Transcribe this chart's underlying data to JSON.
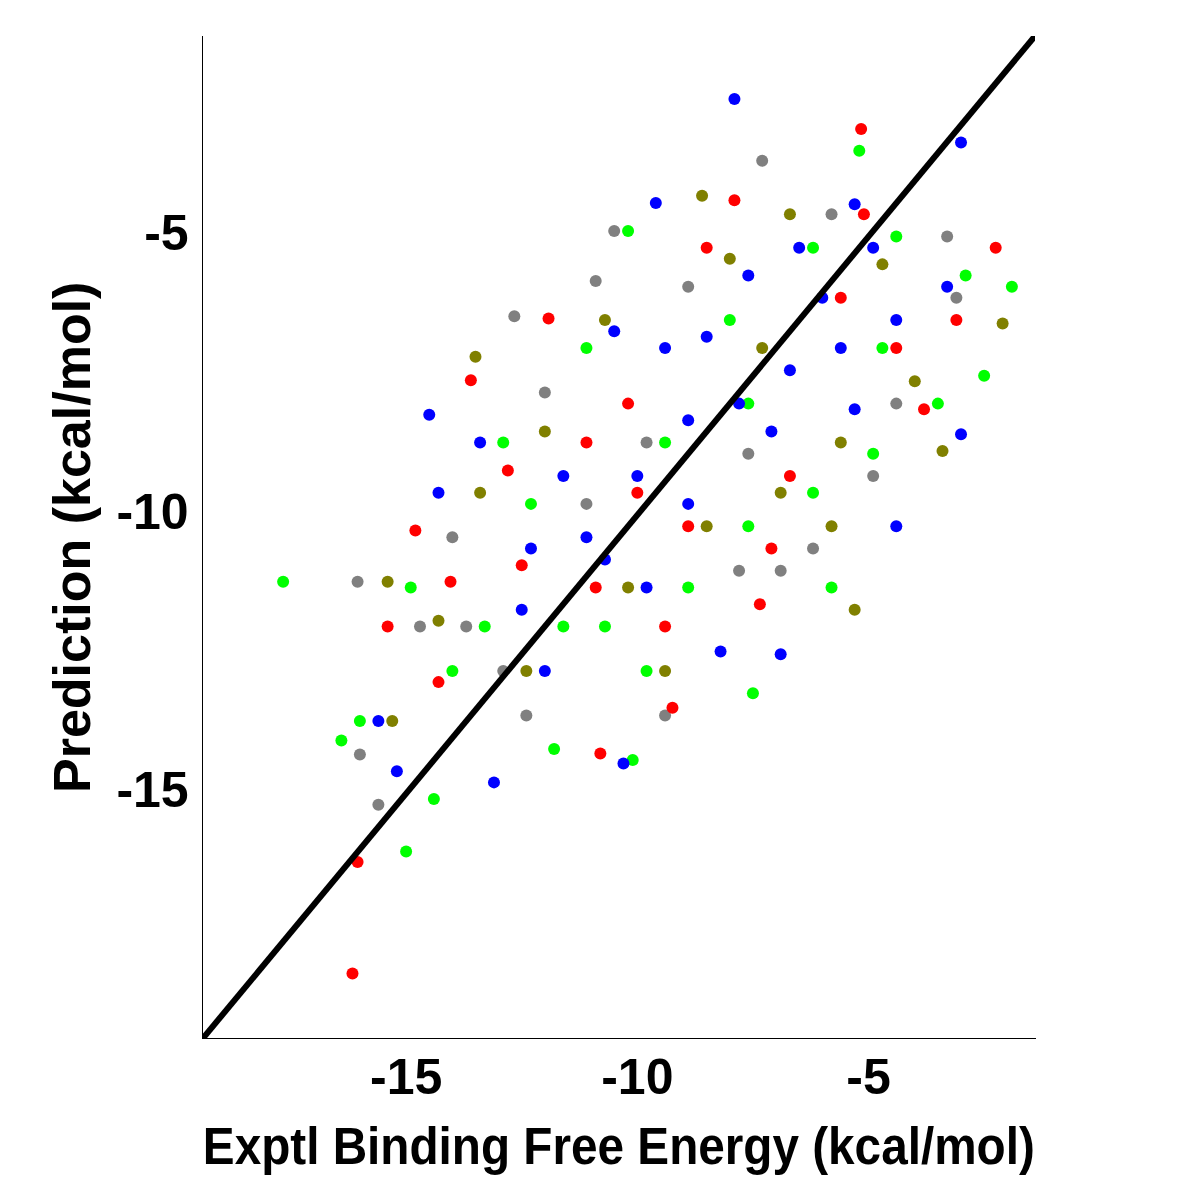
{
  "chart_data": {
    "type": "scatter",
    "xlabel": "Exptl Binding Free Energy (kcal/mol)",
    "ylabel": "Prediction (kcal/mol)",
    "xlim": [
      -19.4,
      -1.4
    ],
    "ylim": [
      -19.4,
      -1.4
    ],
    "xticks": [
      -15,
      -10,
      -5
    ],
    "yticks": [
      -15,
      -10,
      -5
    ],
    "grid": false,
    "legend": false,
    "marker": "circle",
    "series": [
      {
        "color": "#808080",
        "x": [
          -16.05,
          -16.0,
          -15.6,
          -7.3,
          -12.66,
          -10.5,
          -10.9,
          -7.8,
          -6.9,
          -9.4,
          -12.4,
          -13.7,
          -14.0,
          -12.0,
          -8.9,
          -5.8,
          -3.3,
          -3.1,
          -4.9,
          -6.2,
          -9.8,
          -11.1,
          -7.6,
          -4.4,
          -12.9,
          -14.7
        ],
        "values": [
          -11.2,
          -14.3,
          -15.2,
          -3.64,
          -6.43,
          -4.9,
          -5.8,
          -11.0,
          -11.0,
          -13.6,
          -13.6,
          -12.0,
          -10.4,
          -7.8,
          -5.9,
          -4.6,
          -5.0,
          -6.1,
          -9.3,
          -10.6,
          -8.7,
          -9.8,
          -8.9,
          -8.0,
          -12.8,
          -12.0
        ]
      },
      {
        "color": "#808000",
        "x": [
          -13.5,
          -8.6,
          -3.4,
          -5.3,
          -2.1,
          -15.4,
          -15.3,
          -12.4,
          -10.2,
          -8.5,
          -6.9,
          -5.6,
          -4.0,
          -4.7,
          -6.7,
          -8.0,
          -10.7,
          -12.0,
          -13.4,
          -9.4,
          -5.8,
          -7.3,
          -14.3
        ],
        "values": [
          -7.16,
          -4.27,
          -8.85,
          -11.7,
          -6.56,
          -11.2,
          -13.7,
          -12.8,
          -11.3,
          -10.2,
          -9.6,
          -8.7,
          -7.6,
          -5.5,
          -4.6,
          -5.4,
          -6.5,
          -8.5,
          -9.6,
          -12.8,
          -10.2,
          -7.0,
          -11.9
        ]
      },
      {
        "color": "#ff0000",
        "x": [
          -16.16,
          -16.05,
          -5.16,
          -2.25,
          -10.8,
          -9.24,
          -14.8,
          -13.6,
          -7.9,
          -11.92,
          -14.04,
          -15.4,
          -12.8,
          -7.35,
          -10.9,
          -8.9,
          -10.0,
          -6.7,
          -4.4,
          -3.1,
          -8.5,
          -12.5,
          -14.3,
          -11.1,
          -5.6,
          -7.1,
          -9.4,
          -3.8,
          -5.1,
          -10.2
        ],
        "values": [
          -18.23,
          -16.23,
          -3.07,
          -5.2,
          -14.28,
          -13.46,
          -10.28,
          -7.58,
          -4.35,
          -6.47,
          -11.2,
          -12.0,
          -9.2,
          -11.6,
          -11.3,
          -10.2,
          -9.6,
          -9.3,
          -7.0,
          -6.5,
          -5.2,
          -10.9,
          -13.0,
          -8.7,
          -6.1,
          -10.6,
          -12.0,
          -8.1,
          -4.6,
          -8.0
        ]
      },
      {
        "color": "#00ff00",
        "x": [
          -17.66,
          -16.4,
          -15.0,
          -7.5,
          -5.2,
          -1.9,
          -2.5,
          -14.4,
          -11.8,
          -10.1,
          -13.3,
          -11.6,
          -10.7,
          -8.9,
          -7.6,
          -6.2,
          -4.9,
          -3.5,
          -2.9,
          -4.4,
          -6.2,
          -8.0,
          -10.2,
          -11.1,
          -9.4,
          -12.9,
          -12.3,
          -7.6,
          -4.7,
          -14.9,
          -14.0,
          -16.0,
          -5.8,
          -9.8
        ],
        "values": [
          -11.2,
          -14.05,
          -16.04,
          -13.2,
          -3.46,
          -5.9,
          -7.5,
          -15.1,
          -14.2,
          -14.4,
          -12.0,
          -12.0,
          -12.0,
          -11.3,
          -10.2,
          -9.6,
          -8.9,
          -8.0,
          -5.7,
          -5.0,
          -5.2,
          -6.5,
          -4.9,
          -7.0,
          -8.7,
          -8.7,
          -9.8,
          -8.0,
          -7.0,
          -11.3,
          -12.8,
          -13.7,
          -11.3,
          -12.8
        ]
      },
      {
        "color": "#0000ff",
        "x": [
          -7.9,
          -3.0,
          -5.3,
          -3.0,
          -4.4,
          -10.3,
          -13.1,
          -15.2,
          -14.5,
          -14.3,
          -8.2,
          -6.9,
          -15.6,
          -12.3,
          -11.1,
          -10.0,
          -8.9,
          -7.8,
          -6.7,
          -5.6,
          -4.4,
          -3.3,
          -9.4,
          -10.5,
          -8.5,
          -7.6,
          -6.5,
          -11.6,
          -10.7,
          -8.9,
          -7.1,
          -5.3,
          -9.8,
          -12.5,
          -4.9,
          -9.6,
          -13.4,
          -12.0,
          -6.0
        ],
        "values": [
          -2.53,
          -3.31,
          -4.42,
          -8.55,
          -10.2,
          -14.46,
          -14.8,
          -14.6,
          -8.2,
          -9.6,
          -12.45,
          -12.5,
          -13.7,
          -10.6,
          -10.4,
          -9.3,
          -8.3,
          -8.0,
          -7.4,
          -7.0,
          -6.5,
          -5.9,
          -7.0,
          -6.7,
          -6.8,
          -5.7,
          -5.2,
          -9.3,
          -10.8,
          -9.8,
          -8.5,
          -8.1,
          -11.3,
          -11.7,
          -5.2,
          -4.4,
          -8.7,
          -12.8,
          -6.1
        ]
      },
      {
        "type": "line",
        "color": "#000000",
        "marker": "none",
        "x": [
          -19.4,
          -1.4
        ],
        "values": [
          -19.4,
          -1.4
        ]
      }
    ]
  }
}
